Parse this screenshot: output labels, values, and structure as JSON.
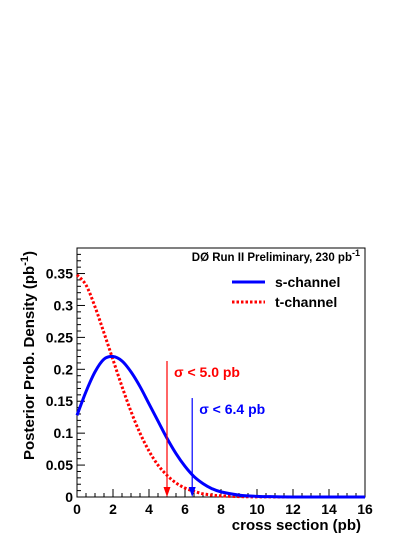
{
  "chart_data": {
    "type": "line",
    "title": "DØ Run II Preliminary, 230 pb",
    "title_superscript": "-1",
    "xlabel": "cross section (pb)",
    "ylabel": "Posterior Prob. Density (pb",
    "ylabel_superscript": "-1",
    "ylabel_close": ")",
    "xlim": [
      0,
      16
    ],
    "ylim": [
      0,
      0.39
    ],
    "x_ticks": [
      0,
      2,
      4,
      6,
      8,
      10,
      12,
      14,
      16
    ],
    "x_tick_labels": [
      "0",
      "2",
      "4",
      "6",
      "8",
      "10",
      "12",
      "14",
      "16"
    ],
    "y_ticks": [
      0,
      0.05,
      0.1,
      0.15,
      0.2,
      0.25,
      0.3,
      0.35
    ],
    "y_tick_labels": [
      "0",
      "0.05",
      "0.1",
      "0.15",
      "0.2",
      "0.25",
      "0.3",
      "0.35"
    ],
    "grid": false,
    "legend_position": "top-right",
    "series": [
      {
        "name": "s-channel",
        "color": "#0000ff",
        "style": "solid",
        "x": [
          0,
          0.5,
          1,
          1.5,
          2,
          2.5,
          3,
          3.5,
          4,
          4.5,
          5,
          5.5,
          6,
          6.5,
          7,
          7.5,
          8,
          9,
          10,
          11,
          12,
          14,
          16
        ],
        "y": [
          0.128,
          0.165,
          0.196,
          0.216,
          0.22,
          0.213,
          0.196,
          0.173,
          0.146,
          0.119,
          0.092,
          0.068,
          0.048,
          0.032,
          0.021,
          0.013,
          0.008,
          0.003,
          0.001,
          0.0004,
          0.0001,
          0.0,
          0.0
        ]
      },
      {
        "name": "t-channel",
        "color": "#ff0000",
        "style": "dotted",
        "x": [
          0,
          0.5,
          1,
          1.5,
          2,
          2.5,
          3,
          3.5,
          4,
          4.5,
          5,
          5.5,
          6,
          6.5,
          7,
          7.5,
          8,
          9,
          10,
          11,
          12,
          14,
          16
        ],
        "y": [
          0.348,
          0.332,
          0.298,
          0.257,
          0.215,
          0.173,
          0.134,
          0.1,
          0.072,
          0.05,
          0.034,
          0.022,
          0.014,
          0.009,
          0.005,
          0.003,
          0.0018,
          0.0006,
          0.0002,
          0.0001,
          0.0,
          0.0,
          0.0
        ]
      }
    ],
    "annotations": [
      {
        "text": "σ < 5.0 pb",
        "x": 5.0,
        "y_top": 0.213,
        "color": "#ff0000"
      },
      {
        "text": "σ < 6.4 pb",
        "x": 6.4,
        "y_top": 0.155,
        "color": "#0000ff"
      }
    ]
  }
}
